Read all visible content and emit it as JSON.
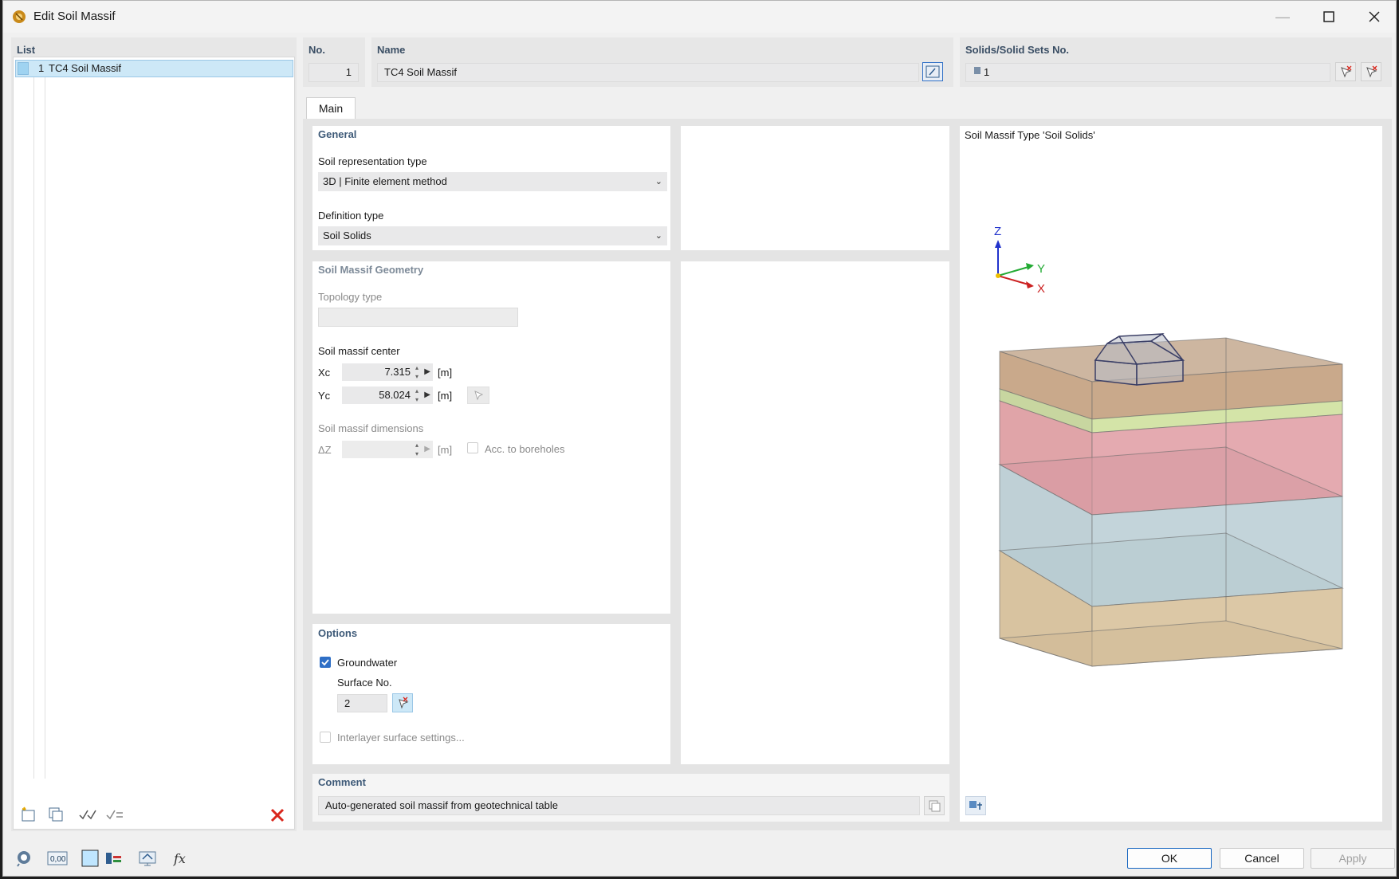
{
  "window": {
    "title": "Edit Soil Massif"
  },
  "list": {
    "header": "List",
    "items": [
      {
        "no": "1",
        "name": "TC4 Soil Massif"
      }
    ]
  },
  "header": {
    "no_label": "No.",
    "no_value": "1",
    "name_label": "Name",
    "name_value": "TC4 Soil Massif",
    "solids_label": "Solids/Solid Sets No.",
    "solids_value": "1"
  },
  "tabs": [
    "Main"
  ],
  "general": {
    "title": "General",
    "soil_rep_label": "Soil representation type",
    "soil_rep_value": "3D | Finite element method",
    "def_type_label": "Definition type",
    "def_type_value": "Soil Solids"
  },
  "geometry": {
    "title": "Soil Massif Geometry",
    "topology_label": "Topology type",
    "topology_value": "",
    "center_label": "Soil massif center",
    "xc_label": "Xc",
    "xc_value": "7.315",
    "yc_label": "Yc",
    "yc_value": "58.024",
    "unit": "[m]",
    "dims_label": "Soil massif dimensions",
    "dz_label": "ΔZ",
    "dz_value": "",
    "acc_boreholes_label": "Acc. to boreholes"
  },
  "options": {
    "title": "Options",
    "groundwater_label": "Groundwater",
    "groundwater_checked": true,
    "surface_no_label": "Surface No.",
    "surface_no_value": "2",
    "interlayer_label": "Interlayer surface settings..."
  },
  "comment": {
    "label": "Comment",
    "value": "Auto-generated soil massif from geotechnical table"
  },
  "preview": {
    "title": "Soil Massif Type 'Soil Solids'",
    "axis_z": "Z",
    "axis_y": "Y",
    "axis_x": "X"
  },
  "buttons": {
    "ok": "OK",
    "cancel": "Cancel",
    "apply": "Apply"
  },
  "bottom_icons": [
    "help-icon",
    "units-icon",
    "color-icon",
    "display-icon",
    "view-icon",
    "formula-icon"
  ],
  "colors": {
    "accent": "#2f6fc6",
    "section_title": "#3e5a78",
    "delete_red": "#d9261c"
  }
}
